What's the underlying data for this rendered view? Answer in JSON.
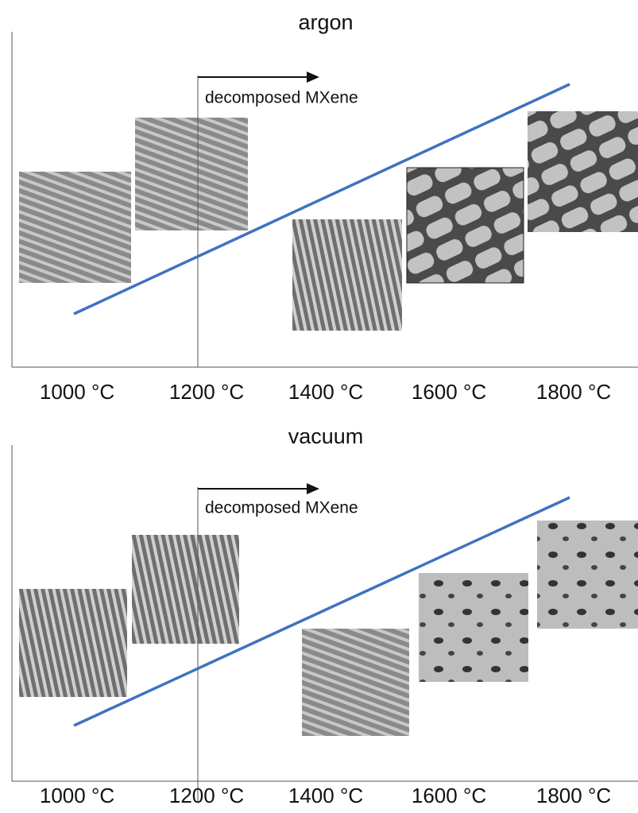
{
  "panels": [
    {
      "title": "argon",
      "annotation": "decomposed MXene",
      "x_labels": [
        "1000 °C",
        "1200 °C",
        "1400 °C",
        "1600 °C",
        "1800 °C"
      ]
    },
    {
      "title": "vacuum",
      "annotation": "decomposed MXene",
      "x_labels": [
        "1000 °C",
        "1200 °C",
        "1400 °C",
        "1600 °C",
        "1800 °C"
      ]
    }
  ]
}
